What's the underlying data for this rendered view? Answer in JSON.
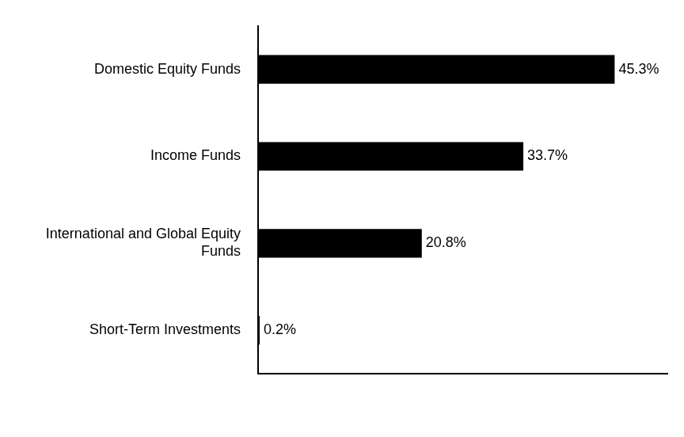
{
  "chart_data": {
    "type": "bar",
    "orientation": "horizontal",
    "categories": [
      "Domestic Equity Funds",
      "Income Funds",
      "International and Global Equity Funds",
      "Short-Term Investments"
    ],
    "values": [
      45.3,
      33.7,
      20.8,
      0.2
    ],
    "value_labels": [
      "45.3%",
      "33.7%",
      "20.8%",
      "0.2%"
    ],
    "color": "#000000",
    "xlim": [
      0,
      52
    ],
    "grid": false,
    "data_labels": true,
    "tick_labels": "y"
  }
}
